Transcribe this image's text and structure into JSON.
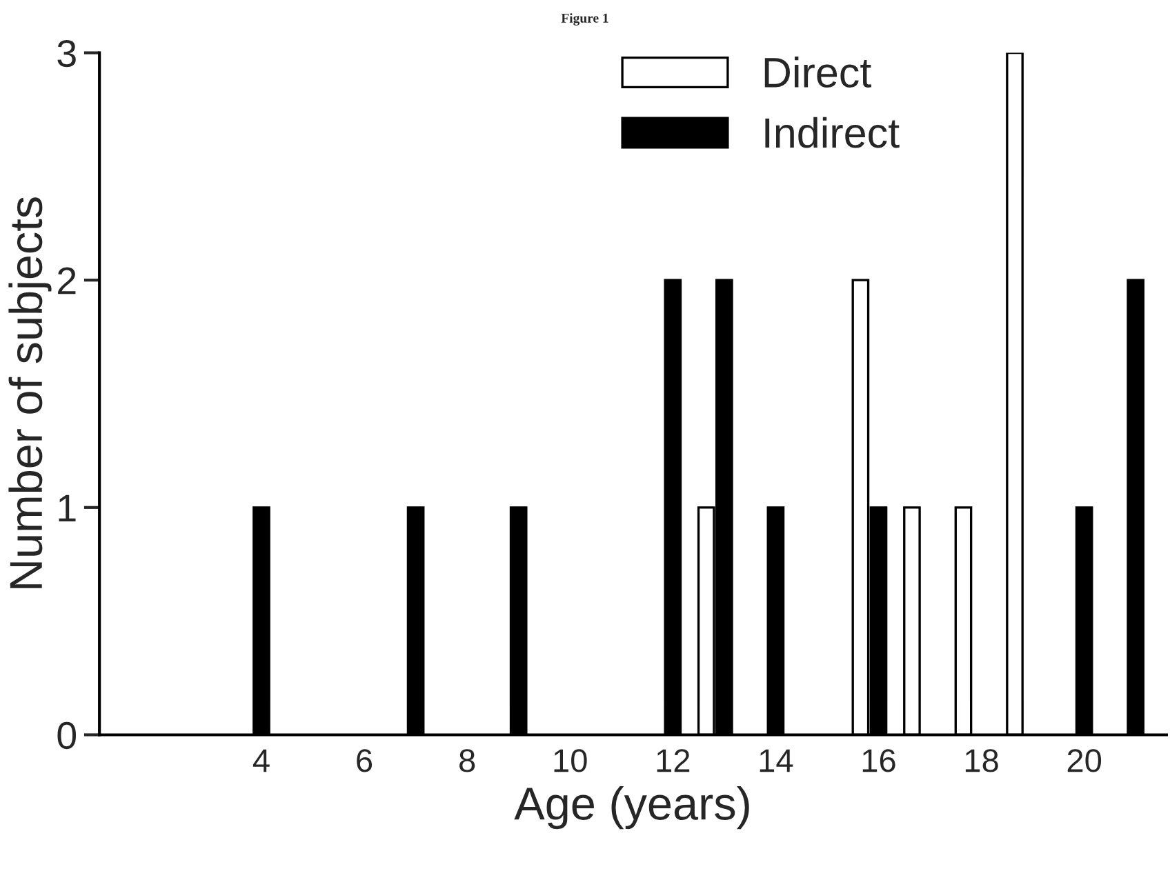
{
  "chart_data": {
    "type": "bar",
    "title": "Figure 1",
    "xlabel": "Age (years)",
    "ylabel": "Number of subjects",
    "series": [
      {
        "name": "Direct",
        "color": "#ffffff",
        "x": [
          13,
          16,
          17,
          18,
          19
        ],
        "values": [
          1,
          2,
          1,
          1,
          3
        ]
      },
      {
        "name": "Indirect",
        "color": "#000000",
        "x": [
          4,
          7,
          9,
          12,
          13,
          14,
          16,
          20,
          21
        ],
        "values": [
          1,
          1,
          1,
          2,
          2,
          1,
          1,
          1,
          2
        ]
      }
    ],
    "xlim": [
      0.85,
      21.6
    ],
    "xticks": [
      4,
      6,
      8,
      10,
      12,
      14,
      16,
      18,
      20
    ],
    "ylim": [
      0,
      3
    ],
    "yticks": [
      0,
      1,
      2,
      3
    ],
    "grid": false,
    "legend": "top"
  }
}
